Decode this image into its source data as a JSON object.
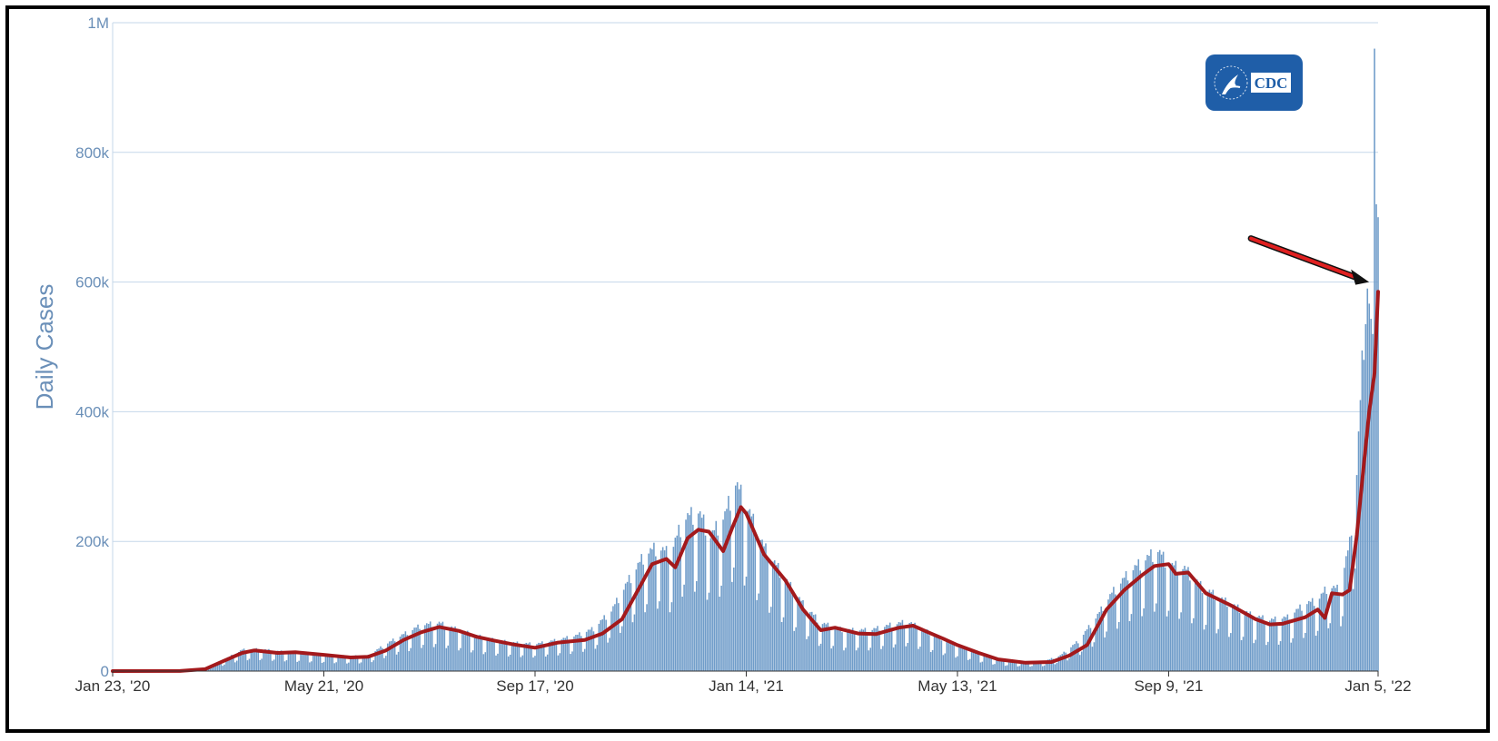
{
  "chart_data": {
    "type": "bar",
    "title": "",
    "ylabel": "Daily Cases",
    "xlabel": "",
    "x_range": [
      "2020-01-23",
      "2022-01-05"
    ],
    "ylim": [
      0,
      1000000
    ],
    "y_ticks": [
      {
        "value": 0,
        "label": "0"
      },
      {
        "value": 200000,
        "label": "200k"
      },
      {
        "value": 400000,
        "label": "400k"
      },
      {
        "value": 600000,
        "label": "600k"
      },
      {
        "value": 800000,
        "label": "800k"
      },
      {
        "value": 1000000,
        "label": "1M"
      }
    ],
    "x_ticks": [
      {
        "date": "2020-01-23",
        "label": "Jan 23, '20"
      },
      {
        "date": "2020-05-21",
        "label": "May 21, '20"
      },
      {
        "date": "2020-09-17",
        "label": "Sep 17, '20"
      },
      {
        "date": "2021-01-14",
        "label": "Jan 14, '21"
      },
      {
        "date": "2021-05-13",
        "label": "May 13, '21"
      },
      {
        "date": "2021-09-09",
        "label": "Sep 9, '21"
      },
      {
        "date": "2022-01-05",
        "label": "Jan 5, '22"
      }
    ],
    "grid": true,
    "series": [
      {
        "kind": "bars",
        "color": "#6f9cc9",
        "points": [
          [
            "2020-01-23",
            0
          ],
          [
            "2020-02-15",
            0
          ],
          [
            "2020-03-05",
            200
          ],
          [
            "2020-03-15",
            3000
          ],
          [
            "2020-03-25",
            15000
          ],
          [
            "2020-04-05",
            30000
          ],
          [
            "2020-04-15",
            31000
          ],
          [
            "2020-04-25",
            28000
          ],
          [
            "2020-05-05",
            26000
          ],
          [
            "2020-05-20",
            23000
          ],
          [
            "2020-06-05",
            21000
          ],
          [
            "2020-06-15",
            22000
          ],
          [
            "2020-06-25",
            38000
          ],
          [
            "2020-07-05",
            52000
          ],
          [
            "2020-07-15",
            65000
          ],
          [
            "2020-07-25",
            68000
          ],
          [
            "2020-08-05",
            58000
          ],
          [
            "2020-08-15",
            50000
          ],
          [
            "2020-08-25",
            44000
          ],
          [
            "2020-09-05",
            40000
          ],
          [
            "2020-09-17",
            38000
          ],
          [
            "2020-09-30",
            44000
          ],
          [
            "2020-10-10",
            50000
          ],
          [
            "2020-10-20",
            60000
          ],
          [
            "2020-10-30",
            85000
          ],
          [
            "2020-11-08",
            125000
          ],
          [
            "2020-11-18",
            165000
          ],
          [
            "2020-11-25",
            175000
          ],
          [
            "2020-12-02",
            165000
          ],
          [
            "2020-12-10",
            215000
          ],
          [
            "2020-12-18",
            225000
          ],
          [
            "2020-12-25",
            190000
          ],
          [
            "2021-01-02",
            220000
          ],
          [
            "2021-01-08",
            265000
          ],
          [
            "2021-01-14",
            235000
          ],
          [
            "2021-01-24",
            175000
          ],
          [
            "2021-02-05",
            130000
          ],
          [
            "2021-02-15",
            95000
          ],
          [
            "2021-02-25",
            68000
          ],
          [
            "2021-03-10",
            58000
          ],
          [
            "2021-03-25",
            58000
          ],
          [
            "2021-04-05",
            65000
          ],
          [
            "2021-04-15",
            70000
          ],
          [
            "2021-04-25",
            57000
          ],
          [
            "2021-05-05",
            45000
          ],
          [
            "2021-05-13",
            37000
          ],
          [
            "2021-05-25",
            25000
          ],
          [
            "2021-06-05",
            16000
          ],
          [
            "2021-06-20",
            12000
          ],
          [
            "2021-07-01",
            14000
          ],
          [
            "2021-07-10",
            22000
          ],
          [
            "2021-07-20",
            42000
          ],
          [
            "2021-07-30",
            75000
          ],
          [
            "2021-08-08",
            110000
          ],
          [
            "2021-08-18",
            140000
          ],
          [
            "2021-08-28",
            160000
          ],
          [
            "2021-09-03",
            170000
          ],
          [
            "2021-09-09",
            150000
          ],
          [
            "2021-09-18",
            145000
          ],
          [
            "2021-09-28",
            118000
          ],
          [
            "2021-10-10",
            100000
          ],
          [
            "2021-10-25",
            80000
          ],
          [
            "2021-11-05",
            72000
          ],
          [
            "2021-11-15",
            76000
          ],
          [
            "2021-11-25",
            95000
          ],
          [
            "2021-12-02",
            100000
          ],
          [
            "2021-12-08",
            120000
          ],
          [
            "2021-12-14",
            115000
          ],
          [
            "2021-12-20",
            180000
          ],
          [
            "2021-12-24",
            280000
          ],
          [
            "2021-12-28",
            480000
          ],
          [
            "2021-12-30",
            590000
          ],
          [
            "2022-01-02",
            520000
          ],
          [
            "2022-01-03",
            960000
          ],
          [
            "2022-01-04",
            720000
          ],
          [
            "2022-01-05",
            700000
          ]
        ]
      },
      {
        "kind": "line",
        "color": "#a3191c",
        "points": [
          [
            "2020-01-23",
            0
          ],
          [
            "2020-03-01",
            200
          ],
          [
            "2020-03-15",
            3000
          ],
          [
            "2020-03-25",
            15000
          ],
          [
            "2020-04-05",
            28000
          ],
          [
            "2020-04-12",
            32000
          ],
          [
            "2020-04-25",
            28000
          ],
          [
            "2020-05-05",
            29000
          ],
          [
            "2020-05-21",
            25000
          ],
          [
            "2020-06-05",
            21000
          ],
          [
            "2020-06-15",
            22000
          ],
          [
            "2020-06-25",
            32000
          ],
          [
            "2020-07-05",
            48000
          ],
          [
            "2020-07-15",
            60000
          ],
          [
            "2020-07-25",
            68000
          ],
          [
            "2020-08-05",
            62000
          ],
          [
            "2020-08-15",
            53000
          ],
          [
            "2020-08-25",
            47000
          ],
          [
            "2020-09-05",
            41000
          ],
          [
            "2020-09-17",
            36000
          ],
          [
            "2020-09-30",
            44000
          ],
          [
            "2020-10-15",
            48000
          ],
          [
            "2020-10-25",
            58000
          ],
          [
            "2020-11-05",
            80000
          ],
          [
            "2020-11-12",
            115000
          ],
          [
            "2020-11-22",
            165000
          ],
          [
            "2020-11-30",
            173000
          ],
          [
            "2020-12-05",
            160000
          ],
          [
            "2020-12-12",
            205000
          ],
          [
            "2020-12-18",
            218000
          ],
          [
            "2020-12-24",
            215000
          ],
          [
            "2021-01-01",
            185000
          ],
          [
            "2021-01-06",
            220000
          ],
          [
            "2021-01-11",
            253000
          ],
          [
            "2021-01-14",
            243000
          ],
          [
            "2021-01-24",
            180000
          ],
          [
            "2021-02-05",
            140000
          ],
          [
            "2021-02-15",
            95000
          ],
          [
            "2021-02-25",
            63000
          ],
          [
            "2021-03-05",
            67000
          ],
          [
            "2021-03-18",
            58000
          ],
          [
            "2021-03-28",
            57000
          ],
          [
            "2021-04-10",
            67000
          ],
          [
            "2021-04-18",
            70000
          ],
          [
            "2021-04-28",
            58000
          ],
          [
            "2021-05-05",
            50000
          ],
          [
            "2021-05-13",
            40000
          ],
          [
            "2021-05-25",
            28000
          ],
          [
            "2021-06-05",
            18000
          ],
          [
            "2021-06-20",
            13000
          ],
          [
            "2021-07-05",
            14000
          ],
          [
            "2021-07-15",
            24000
          ],
          [
            "2021-07-25",
            40000
          ],
          [
            "2021-08-05",
            95000
          ],
          [
            "2021-08-15",
            125000
          ],
          [
            "2021-08-25",
            148000
          ],
          [
            "2021-09-01",
            162000
          ],
          [
            "2021-09-09",
            165000
          ],
          [
            "2021-09-13",
            150000
          ],
          [
            "2021-09-20",
            152000
          ],
          [
            "2021-09-30",
            120000
          ],
          [
            "2021-10-15",
            100000
          ],
          [
            "2021-10-28",
            80000
          ],
          [
            "2021-11-05",
            72000
          ],
          [
            "2021-11-12",
            73000
          ],
          [
            "2021-11-25",
            83000
          ],
          [
            "2021-12-02",
            95000
          ],
          [
            "2021-12-06",
            82000
          ],
          [
            "2021-12-10",
            120000
          ],
          [
            "2021-12-16",
            118000
          ],
          [
            "2021-12-20",
            125000
          ],
          [
            "2021-12-24",
            210000
          ],
          [
            "2021-12-28",
            320000
          ],
          [
            "2021-12-31",
            400000
          ],
          [
            "2022-01-03",
            460000
          ],
          [
            "2022-01-05",
            585000
          ]
        ]
      }
    ],
    "annotations": [
      {
        "type": "arrow",
        "color": "#e02020",
        "points_to": [
          "2022-01-02",
          600000
        ]
      }
    ],
    "logo": {
      "text": "CDC",
      "background": "#1f5ea8"
    }
  }
}
